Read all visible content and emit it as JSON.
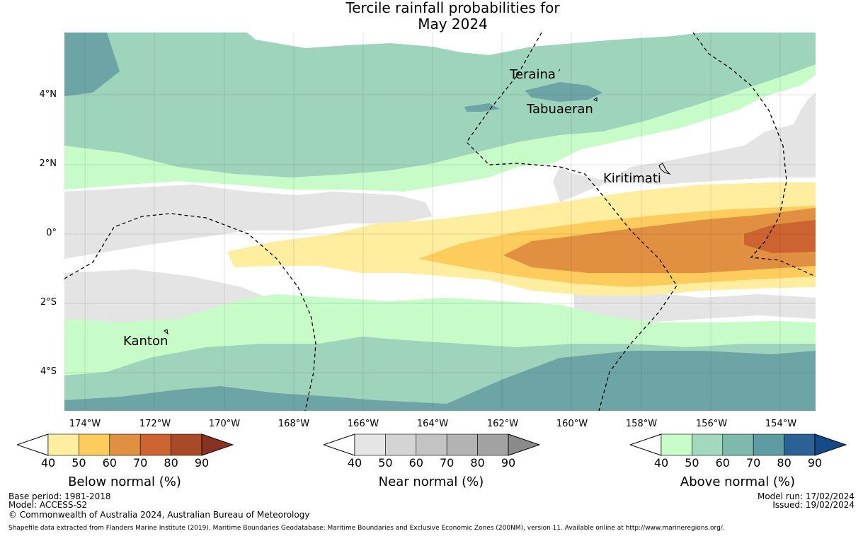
{
  "title": {
    "line1": "Tercile rainfall probabilities for",
    "line2": "May 2024"
  },
  "lat_labels": [
    "4°N",
    "2°N",
    "0°",
    "2°S",
    "4°S"
  ],
  "lon_labels": [
    "174°W",
    "172°W",
    "170°W",
    "168°W",
    "166°W",
    "164°W",
    "162°W",
    "160°W",
    "158°W",
    "156°W",
    "154°W"
  ],
  "places": [
    "Teraina",
    "Tabuaeran",
    "Kiritimati",
    "Kanton"
  ],
  "colorbars": {
    "below": {
      "label": "Below normal (%)",
      "ticks": [
        "40",
        "50",
        "60",
        "70",
        "80",
        "90"
      ],
      "colors": [
        "#ffeda0",
        "#fecc5c",
        "#e09040",
        "#cc6330",
        "#a84a28",
        "#8a3222"
      ]
    },
    "near": {
      "label": "Near normal (%)",
      "ticks": [
        "40",
        "50",
        "60",
        "70",
        "80",
        "90"
      ],
      "colors": [
        "#e5e5e5",
        "#d4d4d4",
        "#c3c3c3",
        "#b3b3b3",
        "#a2a2a2",
        "#8a8a8a"
      ]
    },
    "above": {
      "label": "Above normal (%)",
      "ticks": [
        "40",
        "50",
        "60",
        "70",
        "80",
        "90"
      ],
      "colors": [
        "#c7fcc8",
        "#a2d8bd",
        "#7fb8ac",
        "#5e9ba3",
        "#2c6196",
        "#164a86"
      ]
    }
  },
  "footer": {
    "base_period": "Base period: 1981-2018",
    "model": "Model: ACCESS-S2",
    "copyright": "© Commonwealth of Australia 2024, Australian Bureau of Meteorology",
    "model_run": "Model run: 17/02/2024",
    "issued": "Issued: 19/02/2024",
    "shapefile": "Shapefile data extracted from Flanders Marine Institute (2019), Maritime Boundaries Geodatabase: Maritime Boundaries and Exclusive Economic Zones (200NM), version 11. Available online at http://www.marineregions.org/."
  },
  "map_colors": {
    "near": "#e4e4e4",
    "above1": "#c7fcc8",
    "above2": "#9ed3bc",
    "above3": "#6da5a6",
    "below1": "#ffeda0",
    "below2": "#fecc5c",
    "below3": "#e09040",
    "below4": "#cc6330"
  }
}
